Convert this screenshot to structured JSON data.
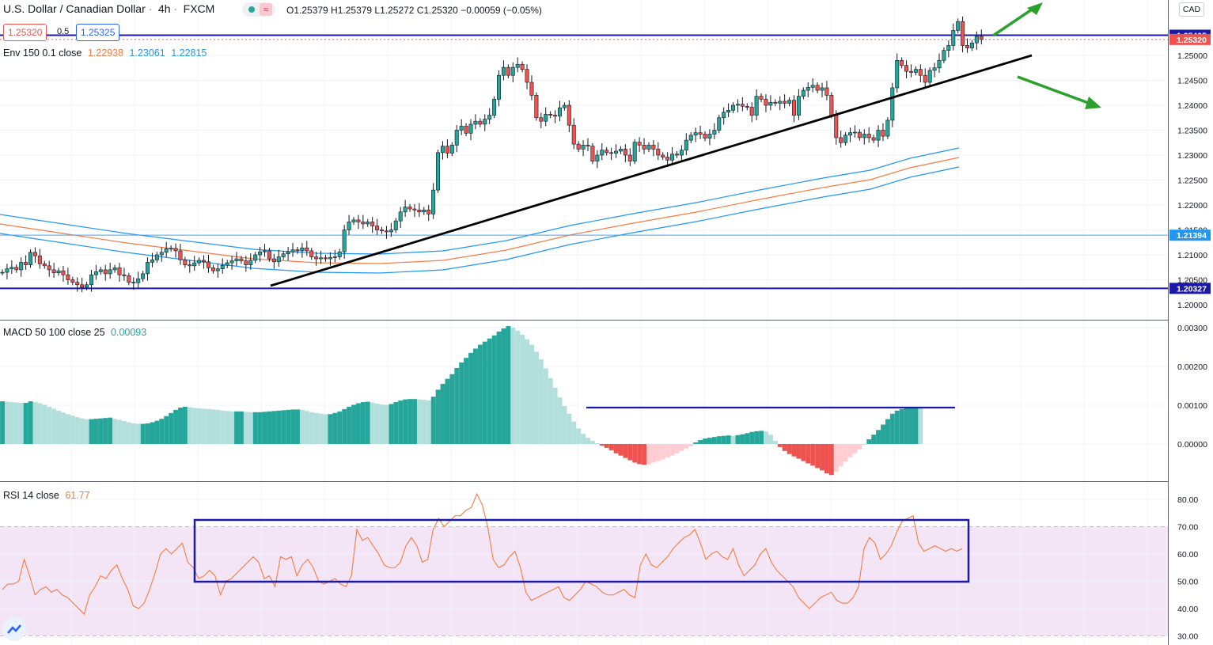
{
  "header": {
    "symbol": "U.S. Dollar / Canadian Dollar",
    "interval": "4h",
    "exchange": "FXCM",
    "ohlc": "O1.25379 H1.25379 L1.25272 C1.25320 −0.00059 (−0.05%)",
    "sell_price": "1.25320",
    "spread": "0.5",
    "buy_price": "1.25325",
    "currency": "CAD"
  },
  "indicators": {
    "env": {
      "label": "Env 150 0.1 close",
      "v1": "1.22938",
      "v2": "1.23061",
      "v3": "1.22815"
    },
    "macd": {
      "label": "MACD 50 100 close 25",
      "value": "0.00093"
    },
    "rsi": {
      "label": "RSI 14 close",
      "value": "61.77"
    }
  },
  "colors": {
    "up": "#26a69a",
    "down": "#ef5350",
    "candle_line": "#131722",
    "env_mid": "#f57c43",
    "env_band": "#2196f3",
    "hist_strong_up": "#26a69a",
    "hist_weak_up": "#b2dfdb",
    "hist_strong_down": "#ef5350",
    "hist_weak_down": "#ffcdd2",
    "rsi_line": "#f57c43",
    "rsi_band": "#f3e5f5",
    "hline_blue": "#1a1aa6",
    "hline_light": "#42a5f5",
    "trend_line": "#000000",
    "arrow": "#2ca02c",
    "box": "#1a1aa6"
  },
  "axis": {
    "price_ticks": [
      "1.25000",
      "1.24500",
      "1.24000",
      "1.23500",
      "1.23000",
      "1.22500",
      "1.22000",
      "1.21500",
      "1.21000",
      "1.20500",
      "1.20000"
    ],
    "price_tags": [
      {
        "label": "1.25405",
        "kind": "dark"
      },
      {
        "label": "1.25320",
        "kind": "red"
      },
      {
        "label": "1.21394",
        "kind": "light"
      },
      {
        "label": "1.20327",
        "kind": "dark"
      }
    ],
    "macd_ticks": [
      "0.00300",
      "0.00200",
      "0.00100",
      "0.00000"
    ],
    "rsi_ticks": [
      "80.00",
      "70.00",
      "60.00",
      "50.00",
      "40.00",
      "30.00"
    ]
  },
  "chart_data": {
    "type": "candlestick",
    "symbol": "USDCAD",
    "timeframe": "4h",
    "price_panel": {
      "ylim": [
        1.2005,
        1.2555
      ],
      "closes": [
        1.2065,
        1.2072,
        1.2075,
        1.207,
        1.2085,
        1.208,
        1.2105,
        1.2098,
        1.2082,
        1.2078,
        1.207,
        1.2064,
        1.2068,
        1.206,
        1.205,
        1.2045,
        1.204,
        1.2035,
        1.204,
        1.206,
        1.2066,
        1.207,
        1.2062,
        1.207,
        1.2074,
        1.206,
        1.2058,
        1.2045,
        1.2044,
        1.2052,
        1.2062,
        1.2085,
        1.209,
        1.21,
        1.2105,
        1.2112,
        1.2113,
        1.2108,
        1.209,
        1.208,
        1.2078,
        1.2084,
        1.2089,
        1.2086,
        1.2074,
        1.2068,
        1.2072,
        1.2079,
        1.2084,
        1.2088,
        1.2092,
        1.2088,
        1.208,
        1.2089,
        1.21,
        1.2106,
        1.2108,
        1.2092,
        1.2086,
        1.2096,
        1.2102,
        1.2106,
        1.211,
        1.2108,
        1.2114,
        1.2108,
        1.2096,
        1.2092,
        1.2094,
        1.2092,
        1.2095,
        1.2096,
        1.2106,
        1.215,
        1.2166,
        1.217,
        1.2166,
        1.2162,
        1.2166,
        1.2158,
        1.215,
        1.2148,
        1.2146,
        1.215,
        1.2168,
        1.2186,
        1.2196,
        1.2192,
        1.219,
        1.2186,
        1.219,
        1.2182,
        1.223,
        1.2305,
        1.2318,
        1.2304,
        1.232,
        1.235,
        1.2358,
        1.2344,
        1.2362,
        1.2368,
        1.2362,
        1.2372,
        1.238,
        1.2412,
        1.246,
        1.2476,
        1.246,
        1.2476,
        1.2482,
        1.2472,
        1.2446,
        1.242,
        1.2375,
        1.2368,
        1.2382,
        1.238,
        1.2378,
        1.2395,
        1.24,
        1.236,
        1.2322,
        1.2312,
        1.232,
        1.2318,
        1.2288,
        1.23,
        1.231,
        1.2305,
        1.2304,
        1.2308,
        1.2312,
        1.23,
        1.2288,
        1.2326,
        1.232,
        1.2312,
        1.232,
        1.2312,
        1.23,
        1.2296,
        1.229,
        1.2302,
        1.23,
        1.231,
        1.233,
        1.234,
        1.2345,
        1.2342,
        1.2334,
        1.2342,
        1.235,
        1.2375,
        1.2386,
        1.239,
        1.24,
        1.2402,
        1.2398,
        1.2396,
        1.238,
        1.2418,
        1.2412,
        1.24,
        1.2406,
        1.2404,
        1.2408,
        1.2404,
        1.241,
        1.238,
        1.2418,
        1.243,
        1.2436,
        1.244,
        1.243,
        1.2435,
        1.242,
        1.238,
        1.2335,
        1.2325,
        1.234,
        1.2345,
        1.2346,
        1.2335,
        1.2342,
        1.2335,
        1.233,
        1.235,
        1.2338,
        1.237,
        1.2435,
        1.249,
        1.248,
        1.2468,
        1.2466,
        1.2472,
        1.246,
        1.2446,
        1.247,
        1.2475,
        1.249,
        1.251,
        1.252,
        1.255,
        1.2568,
        1.252,
        1.2515,
        1.2525,
        1.2538,
        1.2532
      ]
    },
    "envelope": {
      "length": 150,
      "percent": 0.1,
      "last": [
        1.22938,
        1.23061,
        1.22815
      ]
    },
    "horizontal_levels": [
      1.25405,
      1.21394,
      1.20327
    ],
    "macd_panel": {
      "ylim": [
        -0.0008,
        0.0032
      ],
      "histogram": [
        0.0011,
        0.00109,
        0.00108,
        0.00107,
        0.00106,
        0.00106,
        0.0011,
        0.00108,
        0.00105,
        0.00101,
        0.00096,
        0.00091,
        0.00086,
        0.00081,
        0.00077,
        0.00073,
        0.00069,
        0.00066,
        0.00064,
        0.00064,
        0.00065,
        0.00066,
        0.00067,
        0.00068,
        0.00065,
        0.00062,
        0.00059,
        0.00056,
        0.00053,
        0.00052,
        0.00052,
        0.00053,
        0.00056,
        0.0006,
        0.00065,
        0.00072,
        0.0008,
        0.00088,
        0.00094,
        0.00096,
        0.00095,
        0.00093,
        0.00092,
        0.00091,
        0.0009,
        0.00089,
        0.00088,
        0.00086,
        0.00085,
        0.00084,
        0.00084,
        0.00084,
        0.00083,
        0.00082,
        0.00082,
        0.00082,
        0.00083,
        0.00084,
        0.00085,
        0.00086,
        0.00087,
        0.00088,
        0.00089,
        0.00089,
        0.00088,
        0.00085,
        0.00082,
        0.0008,
        0.00078,
        0.00077,
        0.00077,
        0.0008,
        0.00084,
        0.0009,
        0.00096,
        0.00101,
        0.00105,
        0.00108,
        0.00109,
        0.00107,
        0.00104,
        0.00102,
        0.00101,
        0.00103,
        0.00108,
        0.00112,
        0.00115,
        0.00116,
        0.00116,
        0.00115,
        0.00114,
        0.00112,
        0.00122,
        0.0014,
        0.00155,
        0.00168,
        0.0018,
        0.00196,
        0.0021,
        0.00222,
        0.00235,
        0.00246,
        0.00256,
        0.00264,
        0.00272,
        0.0028,
        0.0029,
        0.00298,
        0.00304,
        0.003,
        0.00292,
        0.00282,
        0.0027,
        0.00256,
        0.00238,
        0.00218,
        0.00195,
        0.0017,
        0.00145,
        0.0012,
        0.00098,
        0.00078,
        0.00058,
        0.0004,
        0.00026,
        0.00016,
        8e-05,
        2e-05,
        -4e-05,
        -0.0001,
        -0.00016,
        -0.00024,
        -0.0003,
        -0.00036,
        -0.00042,
        -0.00048,
        -0.00052,
        -0.00054,
        -0.00052,
        -0.00048,
        -0.00044,
        -0.0004,
        -0.00035,
        -0.0003,
        -0.00024,
        -0.00018,
        -0.00012,
        -6e-05,
        4e-05,
        0.0001,
        0.00014,
        0.00016,
        0.00018,
        0.0002,
        0.00021,
        0.00022,
        0.00021,
        0.00023,
        0.00025,
        0.00028,
        0.00031,
        0.00033,
        0.00034,
        0.00032,
        0.00024,
        8e-05,
        -8e-05,
        -0.00018,
        -0.00026,
        -0.00032,
        -0.00038,
        -0.00044,
        -0.0005,
        -0.00056,
        -0.00062,
        -0.00068,
        -0.00076,
        -0.0008,
        -0.00072,
        -0.00058,
        -0.00045,
        -0.00034,
        -0.00024,
        -0.00014,
        -2e-05,
        0.00012,
        0.00024,
        0.00036,
        0.0005,
        0.00064,
        0.00078,
        0.00086,
        0.0009,
        0.00093,
        0.00094,
        0.00094,
        0.00093
      ]
    },
    "rsi_panel": {
      "ylim": [
        29,
        83
      ],
      "overbought": 70,
      "oversold": 30,
      "values": [
        47,
        49,
        49,
        50,
        58,
        52,
        45,
        47,
        48,
        46,
        47,
        45,
        44,
        42,
        40,
        38,
        45,
        48,
        52,
        51,
        54,
        56,
        51,
        47,
        41,
        40,
        42,
        47,
        53,
        60,
        62,
        60,
        62,
        64,
        57,
        55,
        51,
        52,
        54,
        52,
        45,
        50,
        51,
        53,
        55,
        57,
        59,
        57,
        51,
        52,
        48,
        59,
        58,
        59,
        52,
        56,
        58,
        55,
        50,
        49,
        50,
        51,
        49,
        48,
        52,
        69,
        65,
        66,
        63,
        60,
        56,
        55,
        55,
        57,
        63,
        66,
        63,
        57,
        58,
        69,
        73,
        70,
        72,
        74,
        74,
        76,
        77,
        82,
        78,
        70,
        58,
        55,
        56,
        59,
        61,
        55,
        46,
        43,
        44,
        45,
        46,
        47,
        48,
        44,
        43,
        45,
        47,
        50,
        49,
        48,
        46,
        45,
        45,
        46,
        47,
        45,
        44,
        56,
        60,
        56,
        55,
        57,
        59,
        62,
        64,
        66,
        67,
        69,
        64,
        58,
        60,
        61,
        59,
        58,
        62,
        56,
        52,
        54,
        56,
        60,
        62,
        57,
        54,
        52,
        50,
        48,
        44,
        42,
        40,
        42,
        44,
        45,
        46,
        43,
        42,
        42,
        44,
        48,
        62,
        66,
        64,
        58,
        60,
        63,
        68,
        72,
        73,
        74,
        64,
        61,
        62,
        63,
        62,
        61,
        62,
        61,
        62
      ]
    }
  }
}
